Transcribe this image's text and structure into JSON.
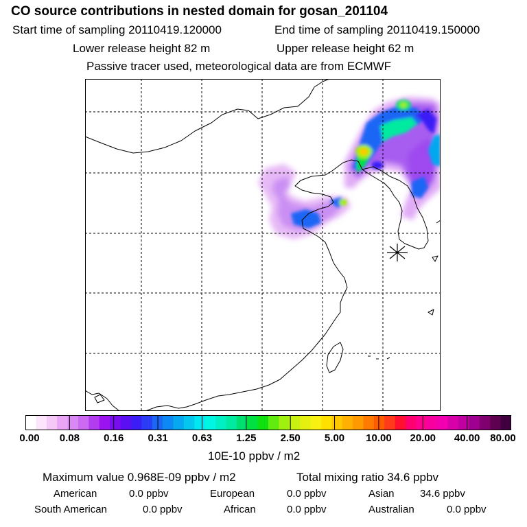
{
  "header": {
    "title": "CO  source contributions in nested domain for gosan_201104",
    "start": "Start time of sampling 20110419.120000",
    "end": "End time of sampling 20110419.150000",
    "lower": "Lower release height   82 m",
    "upper": "Upper release height   62 m",
    "tracer": "Passive tracer used, meteorological data are from ECMWF"
  },
  "colorbar": {
    "ticks": [
      "0.00",
      "0.08",
      "0.16",
      "0.31",
      "0.63",
      "1.25",
      "2.50",
      "5.00",
      "10.00",
      "20.00",
      "40.00",
      "80.00"
    ],
    "unit": "10E-10 ppbv / m2",
    "colors": [
      "#ffffff",
      "#fbe6fb",
      "#f4c8f7",
      "#eaa5f4",
      "#d88af2",
      "#cc6bf2",
      "#b23df0",
      "#9b14ef",
      "#7b0df1",
      "#5b10f3",
      "#3a1ef5",
      "#2a3cf6",
      "#1a66f5",
      "#0e88f2",
      "#06a8f0",
      "#05c6ee",
      "#02e6f2",
      "#00f6e2",
      "#00f0c4",
      "#00eaa0",
      "#00e070",
      "#00e040",
      "#10e010",
      "#60ec10",
      "#a0f010",
      "#c8f010",
      "#e6f010",
      "#f8f010",
      "#ffe000",
      "#ffc800",
      "#ffb000",
      "#ff9a00",
      "#ff7a00",
      "#ff5c00",
      "#ff3a1a",
      "#ff1030",
      "#ff0070",
      "#ff0090",
      "#f800a0",
      "#f000b0",
      "#d800a8",
      "#c000a0",
      "#a00090",
      "#800070",
      "#600050",
      "#400040"
    ]
  },
  "stats": {
    "max": "Maximum value  0.968E-09 ppbv / m2",
    "total": "Total mixing ratio       34.6 ppbv",
    "american_label": "American",
    "american_val": "0.0 ppbv",
    "european_label": "European",
    "european_val": "0.0 ppbv",
    "asian_label": "Asian",
    "asian_val": "34.6 ppbv",
    "samerican_label": "South American",
    "samerican_val": "0.0 ppbv",
    "african_label": "African",
    "african_val": "0.0 ppbv",
    "australian_label": "Australian",
    "australian_val": "0.0 ppbv"
  }
}
